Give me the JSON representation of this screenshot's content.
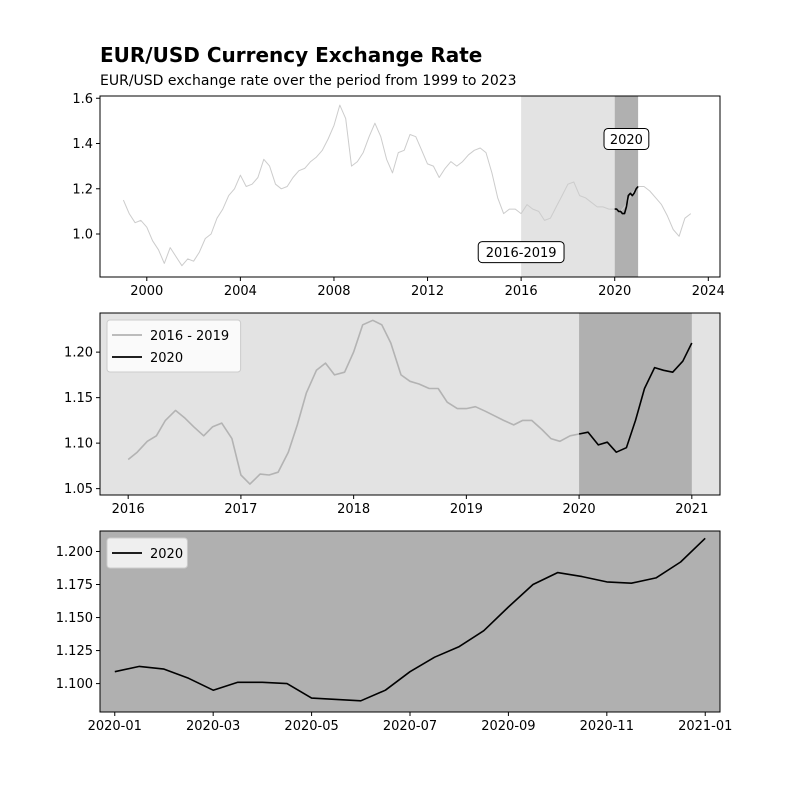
{
  "chart_data": [
    {
      "type": "line",
      "title": "EUR/USD Currency Exchange Rate",
      "subtitle": "EUR/USD exchange rate over the period from 1999 to 2023",
      "xlabel": "",
      "ylabel": "",
      "xlim": [
        1998,
        2024.5
      ],
      "ylim": [
        0.81,
        1.61
      ],
      "xticks": [
        2000,
        2004,
        2008,
        2012,
        2016,
        2020,
        2024
      ],
      "xtick_labels": [
        "2000",
        "2004",
        "2008",
        "2012",
        "2016",
        "2020",
        "2024"
      ],
      "yticks": [
        1.0,
        1.2,
        1.4,
        1.6
      ],
      "ytick_labels": [
        "1.0",
        "1.2",
        "1.4",
        "1.6"
      ],
      "grid": false,
      "highlights": [
        {
          "from": 2016,
          "to": 2020,
          "shade": "#e3e3e3"
        },
        {
          "from": 2020,
          "to": 2021,
          "shade": "#b0b0b0"
        }
      ],
      "annotations": [
        {
          "text": "2020",
          "x": 2020.5,
          "y": 1.42
        },
        {
          "text": "2016-2019",
          "x": 2016.0,
          "y": 0.92
        }
      ],
      "series": [
        {
          "color": "#cccccc",
          "x": [
            1999.0,
            1999.25,
            1999.5,
            1999.75,
            2000.0,
            2000.25,
            2000.5,
            2000.75,
            2001.0,
            2001.25,
            2001.5,
            2001.75,
            2002.0,
            2002.25,
            2002.5,
            2002.75,
            2003.0,
            2003.25,
            2003.5,
            2003.75,
            2004.0,
            2004.25,
            2004.5,
            2004.75,
            2005.0,
            2005.25,
            2005.5,
            2005.75,
            2006.0,
            2006.25,
            2006.5,
            2006.75,
            2007.0,
            2007.25,
            2007.5,
            2007.75,
            2008.0,
            2008.25,
            2008.5,
            2008.75,
            2009.0,
            2009.25,
            2009.5,
            2009.75,
            2010.0,
            2010.25,
            2010.5,
            2010.75,
            2011.0,
            2011.25,
            2011.5,
            2011.75,
            2012.0,
            2012.25,
            2012.5,
            2012.75,
            2013.0,
            2013.25,
            2013.5,
            2013.75,
            2014.0,
            2014.25,
            2014.5,
            2014.75,
            2015.0,
            2015.25,
            2015.5,
            2015.75,
            2016.0,
            2016.25,
            2016.5,
            2016.75,
            2017.0,
            2017.25,
            2017.5,
            2017.75,
            2018.0,
            2018.25,
            2018.5,
            2018.75,
            2019.0,
            2019.25,
            2019.5,
            2019.75,
            2020.0,
            2020.25,
            2020.5,
            2020.75,
            2021.0,
            2021.25,
            2021.5,
            2021.75,
            2022.0,
            2022.25,
            2022.5,
            2022.75,
            2023.0,
            2023.25
          ],
          "y": [
            1.15,
            1.09,
            1.05,
            1.06,
            1.03,
            0.97,
            0.93,
            0.87,
            0.94,
            0.9,
            0.86,
            0.89,
            0.88,
            0.92,
            0.98,
            1.0,
            1.07,
            1.11,
            1.17,
            1.2,
            1.26,
            1.21,
            1.22,
            1.25,
            1.33,
            1.3,
            1.22,
            1.2,
            1.21,
            1.25,
            1.28,
            1.29,
            1.32,
            1.34,
            1.37,
            1.42,
            1.48,
            1.57,
            1.51,
            1.3,
            1.32,
            1.36,
            1.43,
            1.49,
            1.43,
            1.33,
            1.27,
            1.36,
            1.37,
            1.44,
            1.43,
            1.37,
            1.31,
            1.3,
            1.25,
            1.29,
            1.32,
            1.3,
            1.32,
            1.35,
            1.37,
            1.38,
            1.36,
            1.27,
            1.16,
            1.09,
            1.11,
            1.11,
            1.09,
            1.13,
            1.11,
            1.1,
            1.06,
            1.07,
            1.12,
            1.17,
            1.22,
            1.23,
            1.17,
            1.16,
            1.14,
            1.12,
            1.12,
            1.11,
            1.11,
            1.1,
            1.13,
            1.18,
            1.21,
            1.21,
            1.19,
            1.16,
            1.13,
            1.08,
            1.02,
            0.99,
            1.07,
            1.09
          ]
        },
        {
          "color": "#000000",
          "x": [
            2020.0,
            2020.08,
            2020.17,
            2020.25,
            2020.33,
            2020.42,
            2020.5,
            2020.58,
            2020.67,
            2020.75,
            2020.83,
            2020.92,
            2021.0
          ],
          "y": [
            1.11,
            1.11,
            1.1,
            1.1,
            1.09,
            1.09,
            1.12,
            1.17,
            1.18,
            1.17,
            1.18,
            1.2,
            1.21
          ]
        }
      ]
    },
    {
      "type": "line",
      "title": "",
      "xlim": [
        2015.75,
        2021.25
      ],
      "ylim": [
        1.043,
        1.243
      ],
      "xticks": [
        2016,
        2017,
        2018,
        2019,
        2020,
        2021
      ],
      "xtick_labels": [
        "2016",
        "2017",
        "2018",
        "2019",
        "2020",
        "2021"
      ],
      "yticks": [
        1.05,
        1.1,
        1.15,
        1.2
      ],
      "ytick_labels": [
        "1.05",
        "1.10",
        "1.15",
        "1.20"
      ],
      "grid": false,
      "background": "#e3e3e3",
      "highlights": [
        {
          "from": 2020,
          "to": 2021,
          "shade": "#b0b0b0"
        }
      ],
      "legend": {
        "position": "top-left"
      },
      "series": [
        {
          "name": "2016 - 2019",
          "color": "#b3b3b3",
          "x": [
            2016.0,
            2016.08,
            2016.17,
            2016.25,
            2016.33,
            2016.42,
            2016.5,
            2016.58,
            2016.67,
            2016.75,
            2016.83,
            2016.92,
            2017.0,
            2017.08,
            2017.17,
            2017.25,
            2017.33,
            2017.42,
            2017.5,
            2017.58,
            2017.67,
            2017.75,
            2017.83,
            2017.92,
            2018.0,
            2018.08,
            2018.17,
            2018.25,
            2018.33,
            2018.42,
            2018.5,
            2018.58,
            2018.67,
            2018.75,
            2018.83,
            2018.92,
            2019.0,
            2019.08,
            2019.17,
            2019.25,
            2019.33,
            2019.42,
            2019.5,
            2019.58,
            2019.67,
            2019.75,
            2019.83,
            2019.92,
            2020.0
          ],
          "y": [
            1.082,
            1.09,
            1.102,
            1.108,
            1.125,
            1.136,
            1.128,
            1.118,
            1.108,
            1.118,
            1.122,
            1.105,
            1.065,
            1.055,
            1.066,
            1.065,
            1.068,
            1.09,
            1.12,
            1.155,
            1.18,
            1.188,
            1.175,
            1.178,
            1.2,
            1.23,
            1.235,
            1.23,
            1.21,
            1.175,
            1.168,
            1.165,
            1.16,
            1.16,
            1.145,
            1.138,
            1.138,
            1.14,
            1.135,
            1.13,
            1.125,
            1.12,
            1.125,
            1.125,
            1.115,
            1.105,
            1.102,
            1.108,
            1.11
          ]
        },
        {
          "name": "2020",
          "color": "#000000",
          "x": [
            2020.0,
            2020.08,
            2020.17,
            2020.25,
            2020.33,
            2020.42,
            2020.5,
            2020.58,
            2020.67,
            2020.75,
            2020.83,
            2020.92,
            2021.0
          ],
          "y": [
            1.11,
            1.112,
            1.098,
            1.101,
            1.09,
            1.095,
            1.125,
            1.16,
            1.183,
            1.18,
            1.178,
            1.19,
            1.21
          ]
        }
      ]
    },
    {
      "type": "line",
      "title": "",
      "xlim": [
        -0.3,
        12.3
      ],
      "ylim": [
        1.0785,
        1.2155
      ],
      "xticks": [
        0,
        2,
        4,
        6,
        8,
        10,
        12
      ],
      "xtick_labels": [
        "2020-01",
        "2020-03",
        "2020-05",
        "2020-07",
        "2020-09",
        "2020-11",
        "2021-01"
      ],
      "yticks": [
        1.1,
        1.125,
        1.15,
        1.175,
        1.2
      ],
      "ytick_labels": [
        "1.100",
        "1.125",
        "1.150",
        "1.175",
        "1.200"
      ],
      "grid": false,
      "background": "#b0b0b0",
      "legend": {
        "position": "top-left"
      },
      "series": [
        {
          "name": "2020",
          "color": "#000000",
          "x": [
            0.0,
            0.5,
            1.0,
            1.5,
            2.0,
            2.5,
            3.0,
            3.5,
            4.0,
            4.5,
            5.0,
            5.5,
            6.0,
            6.5,
            7.0,
            7.5,
            8.0,
            8.5,
            9.0,
            9.5,
            10.0,
            10.5,
            11.0,
            11.5,
            12.0
          ],
          "y": [
            1.109,
            1.113,
            1.111,
            1.104,
            1.095,
            1.101,
            1.101,
            1.1,
            1.089,
            1.088,
            1.087,
            1.095,
            1.109,
            1.12,
            1.128,
            1.14,
            1.158,
            1.175,
            1.184,
            1.181,
            1.177,
            1.176,
            1.18,
            1.192,
            1.21
          ]
        }
      ]
    }
  ]
}
